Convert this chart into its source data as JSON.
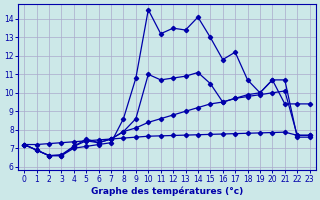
{
  "xlabel": "Graphe des températures (°c)",
  "background_color": "#cce8e8",
  "grid_color": "#aaaacc",
  "line_color": "#0000aa",
  "xlim": [
    -0.5,
    23.5
  ],
  "ylim": [
    5.8,
    14.8
  ],
  "yticks": [
    6,
    7,
    8,
    9,
    10,
    11,
    12,
    13,
    14
  ],
  "xticks": [
    0,
    1,
    2,
    3,
    4,
    5,
    6,
    7,
    8,
    9,
    10,
    11,
    12,
    13,
    14,
    15,
    16,
    17,
    18,
    19,
    20,
    21,
    22,
    23
  ],
  "series": [
    [
      7.2,
      6.9,
      6.6,
      6.6,
      7.0,
      7.1,
      7.2,
      7.3,
      8.6,
      10.8,
      14.5,
      13.2,
      13.5,
      13.4,
      14.1,
      13.0,
      11.8,
      12.2,
      10.7,
      10.0,
      10.7,
      9.4,
      9.4,
      9.4
    ],
    [
      7.2,
      6.9,
      6.6,
      6.65,
      7.1,
      7.5,
      7.3,
      7.5,
      7.9,
      8.6,
      11.0,
      10.7,
      10.8,
      10.9,
      11.1,
      10.5,
      9.5,
      9.7,
      9.9,
      10.0,
      10.7,
      10.7,
      7.6,
      7.6
    ],
    [
      7.2,
      6.9,
      6.6,
      6.6,
      7.1,
      7.4,
      7.3,
      7.5,
      7.9,
      8.1,
      8.4,
      8.6,
      8.8,
      9.0,
      9.2,
      9.4,
      9.5,
      9.7,
      9.8,
      9.9,
      10.0,
      10.1,
      7.7,
      7.7
    ],
    [
      7.2,
      7.2,
      7.25,
      7.3,
      7.35,
      7.4,
      7.45,
      7.5,
      7.55,
      7.6,
      7.65,
      7.67,
      7.69,
      7.71,
      7.73,
      7.75,
      7.77,
      7.79,
      7.81,
      7.83,
      7.85,
      7.87,
      7.7,
      7.7
    ]
  ]
}
